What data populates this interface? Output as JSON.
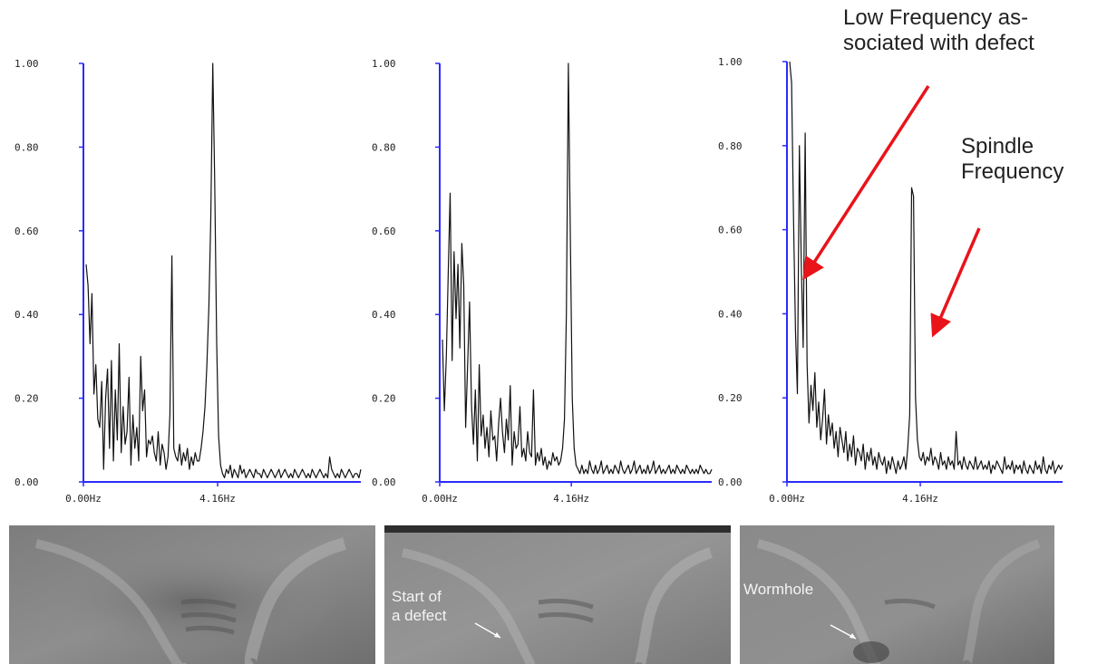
{
  "chart_data": [
    {
      "type": "line",
      "xlabel": "",
      "ylabel": "",
      "ylim": [
        0,
        1
      ],
      "y_ticks": [
        "0.00",
        "0.20",
        "0.40",
        "0.60",
        "0.80",
        "1.00"
      ],
      "x_ticks": [
        "0.00Hz",
        "4.16Hz"
      ],
      "x_range_hz": [
        0,
        8.6
      ],
      "series": [
        {
          "line_color": "#111111",
          "values": [
            0.52,
            0.47,
            0.33,
            0.45,
            0.21,
            0.28,
            0.15,
            0.13,
            0.24,
            0.03,
            0.2,
            0.27,
            0.08,
            0.29,
            0.05,
            0.22,
            0.1,
            0.33,
            0.07,
            0.18,
            0.09,
            0.12,
            0.25,
            0.04,
            0.16,
            0.08,
            0.13,
            0.05,
            0.3,
            0.17,
            0.22,
            0.06,
            0.1,
            0.09,
            0.11,
            0.07,
            0.05,
            0.12,
            0.04,
            0.09,
            0.07,
            0.03,
            0.06,
            0.16,
            0.54,
            0.08,
            0.06,
            0.05,
            0.09,
            0.04,
            0.07,
            0.05,
            0.08,
            0.03,
            0.06,
            0.04,
            0.07,
            0.05,
            0.05,
            0.08,
            0.12,
            0.18,
            0.28,
            0.42,
            0.63,
            1.0,
            0.72,
            0.33,
            0.11,
            0.04,
            0.02,
            0.01,
            0.03,
            0.02,
            0.04,
            0.01,
            0.03,
            0.02,
            0.01,
            0.04,
            0.02,
            0.03,
            0.01,
            0.02,
            0.03,
            0.02,
            0.01,
            0.03,
            0.02,
            0.02,
            0.01,
            0.03,
            0.02,
            0.01,
            0.02,
            0.03,
            0.02,
            0.01,
            0.02,
            0.03,
            0.01,
            0.02,
            0.03,
            0.02,
            0.01,
            0.02,
            0.01,
            0.03,
            0.02,
            0.01,
            0.02,
            0.03,
            0.02,
            0.01,
            0.02,
            0.01,
            0.03,
            0.02,
            0.01,
            0.02,
            0.03,
            0.02,
            0.01,
            0.02,
            0.01,
            0.06,
            0.03,
            0.02,
            0.01,
            0.02,
            0.01,
            0.03,
            0.02,
            0.01,
            0.02,
            0.03,
            0.02,
            0.01,
            0.02,
            0.02,
            0.01,
            0.03
          ]
        }
      ]
    },
    {
      "type": "line",
      "xlabel": "",
      "ylabel": "",
      "ylim": [
        0,
        1
      ],
      "y_ticks": [
        "0.00",
        "0.20",
        "0.40",
        "0.60",
        "0.80",
        "1.00"
      ],
      "x_ticks": [
        "0.00Hz",
        "4.16Hz"
      ],
      "x_range_hz": [
        0,
        8.6
      ],
      "series": [
        {
          "line_color": "#111111",
          "values": [
            0.34,
            0.17,
            0.3,
            0.5,
            0.69,
            0.29,
            0.55,
            0.39,
            0.52,
            0.32,
            0.57,
            0.47,
            0.13,
            0.28,
            0.43,
            0.18,
            0.09,
            0.22,
            0.05,
            0.28,
            0.11,
            0.16,
            0.08,
            0.13,
            0.06,
            0.17,
            0.1,
            0.11,
            0.05,
            0.14,
            0.2,
            0.12,
            0.07,
            0.15,
            0.1,
            0.23,
            0.04,
            0.12,
            0.08,
            0.09,
            0.18,
            0.06,
            0.08,
            0.05,
            0.12,
            0.07,
            0.06,
            0.22,
            0.04,
            0.07,
            0.05,
            0.08,
            0.04,
            0.06,
            0.03,
            0.05,
            0.04,
            0.07,
            0.05,
            0.06,
            0.04,
            0.05,
            0.08,
            0.15,
            0.4,
            1.0,
            0.6,
            0.2,
            0.08,
            0.04,
            0.03,
            0.02,
            0.04,
            0.02,
            0.03,
            0.02,
            0.05,
            0.03,
            0.02,
            0.04,
            0.02,
            0.03,
            0.05,
            0.02,
            0.03,
            0.04,
            0.02,
            0.03,
            0.02,
            0.04,
            0.03,
            0.02,
            0.05,
            0.03,
            0.02,
            0.03,
            0.04,
            0.02,
            0.03,
            0.05,
            0.02,
            0.03,
            0.04,
            0.02,
            0.03,
            0.02,
            0.04,
            0.02,
            0.03,
            0.05,
            0.02,
            0.03,
            0.04,
            0.02,
            0.03,
            0.02,
            0.03,
            0.04,
            0.02,
            0.03,
            0.02,
            0.04,
            0.03,
            0.02,
            0.03,
            0.02,
            0.04,
            0.03,
            0.02,
            0.03,
            0.02,
            0.03,
            0.02,
            0.04,
            0.03,
            0.02,
            0.03,
            0.02,
            0.02,
            0.03
          ]
        }
      ]
    },
    {
      "type": "line",
      "xlabel": "",
      "ylabel": "",
      "ylim": [
        0,
        1
      ],
      "y_ticks": [
        "0.00",
        "0.20",
        "0.40",
        "0.60",
        "0.80",
        "1.00"
      ],
      "x_ticks": [
        "0.00Hz",
        "4.16Hz"
      ],
      "x_range_hz": [
        0,
        8.6
      ],
      "series": [
        {
          "line_color": "#111111",
          "values": [
            1.0,
            0.95,
            0.62,
            0.36,
            0.21,
            0.8,
            0.52,
            0.32,
            0.83,
            0.28,
            0.14,
            0.23,
            0.17,
            0.26,
            0.13,
            0.19,
            0.1,
            0.15,
            0.22,
            0.09,
            0.16,
            0.11,
            0.14,
            0.08,
            0.12,
            0.06,
            0.13,
            0.1,
            0.07,
            0.12,
            0.05,
            0.09,
            0.06,
            0.11,
            0.04,
            0.08,
            0.07,
            0.05,
            0.09,
            0.03,
            0.07,
            0.05,
            0.08,
            0.04,
            0.06,
            0.03,
            0.07,
            0.05,
            0.04,
            0.06,
            0.02,
            0.05,
            0.03,
            0.06,
            0.04,
            0.02,
            0.05,
            0.03,
            0.04,
            0.06,
            0.03,
            0.08,
            0.16,
            0.7,
            0.68,
            0.2,
            0.1,
            0.06,
            0.05,
            0.07,
            0.04,
            0.06,
            0.05,
            0.08,
            0.04,
            0.06,
            0.05,
            0.03,
            0.07,
            0.04,
            0.05,
            0.03,
            0.06,
            0.04,
            0.05,
            0.03,
            0.12,
            0.04,
            0.05,
            0.03,
            0.06,
            0.04,
            0.03,
            0.05,
            0.04,
            0.03,
            0.06,
            0.03,
            0.04,
            0.05,
            0.03,
            0.04,
            0.03,
            0.05,
            0.02,
            0.04,
            0.03,
            0.05,
            0.04,
            0.03,
            0.02,
            0.06,
            0.03,
            0.04,
            0.03,
            0.05,
            0.02,
            0.04,
            0.03,
            0.04,
            0.02,
            0.05,
            0.03,
            0.02,
            0.04,
            0.03,
            0.02,
            0.05,
            0.03,
            0.04,
            0.02,
            0.06,
            0.03,
            0.02,
            0.04,
            0.03,
            0.05,
            0.02,
            0.03,
            0.04,
            0.03,
            0.04
          ]
        }
      ]
    }
  ],
  "annotations": {
    "low_frequency": "Low Frequency as-\nsociated with defect",
    "spindle": "Spindle\nFrequency",
    "arrow_color": "#e8141a"
  },
  "micrographs": [
    {
      "label": ""
    },
    {
      "label": "Start of\na defect"
    },
    {
      "label": "Wormhole"
    }
  ]
}
